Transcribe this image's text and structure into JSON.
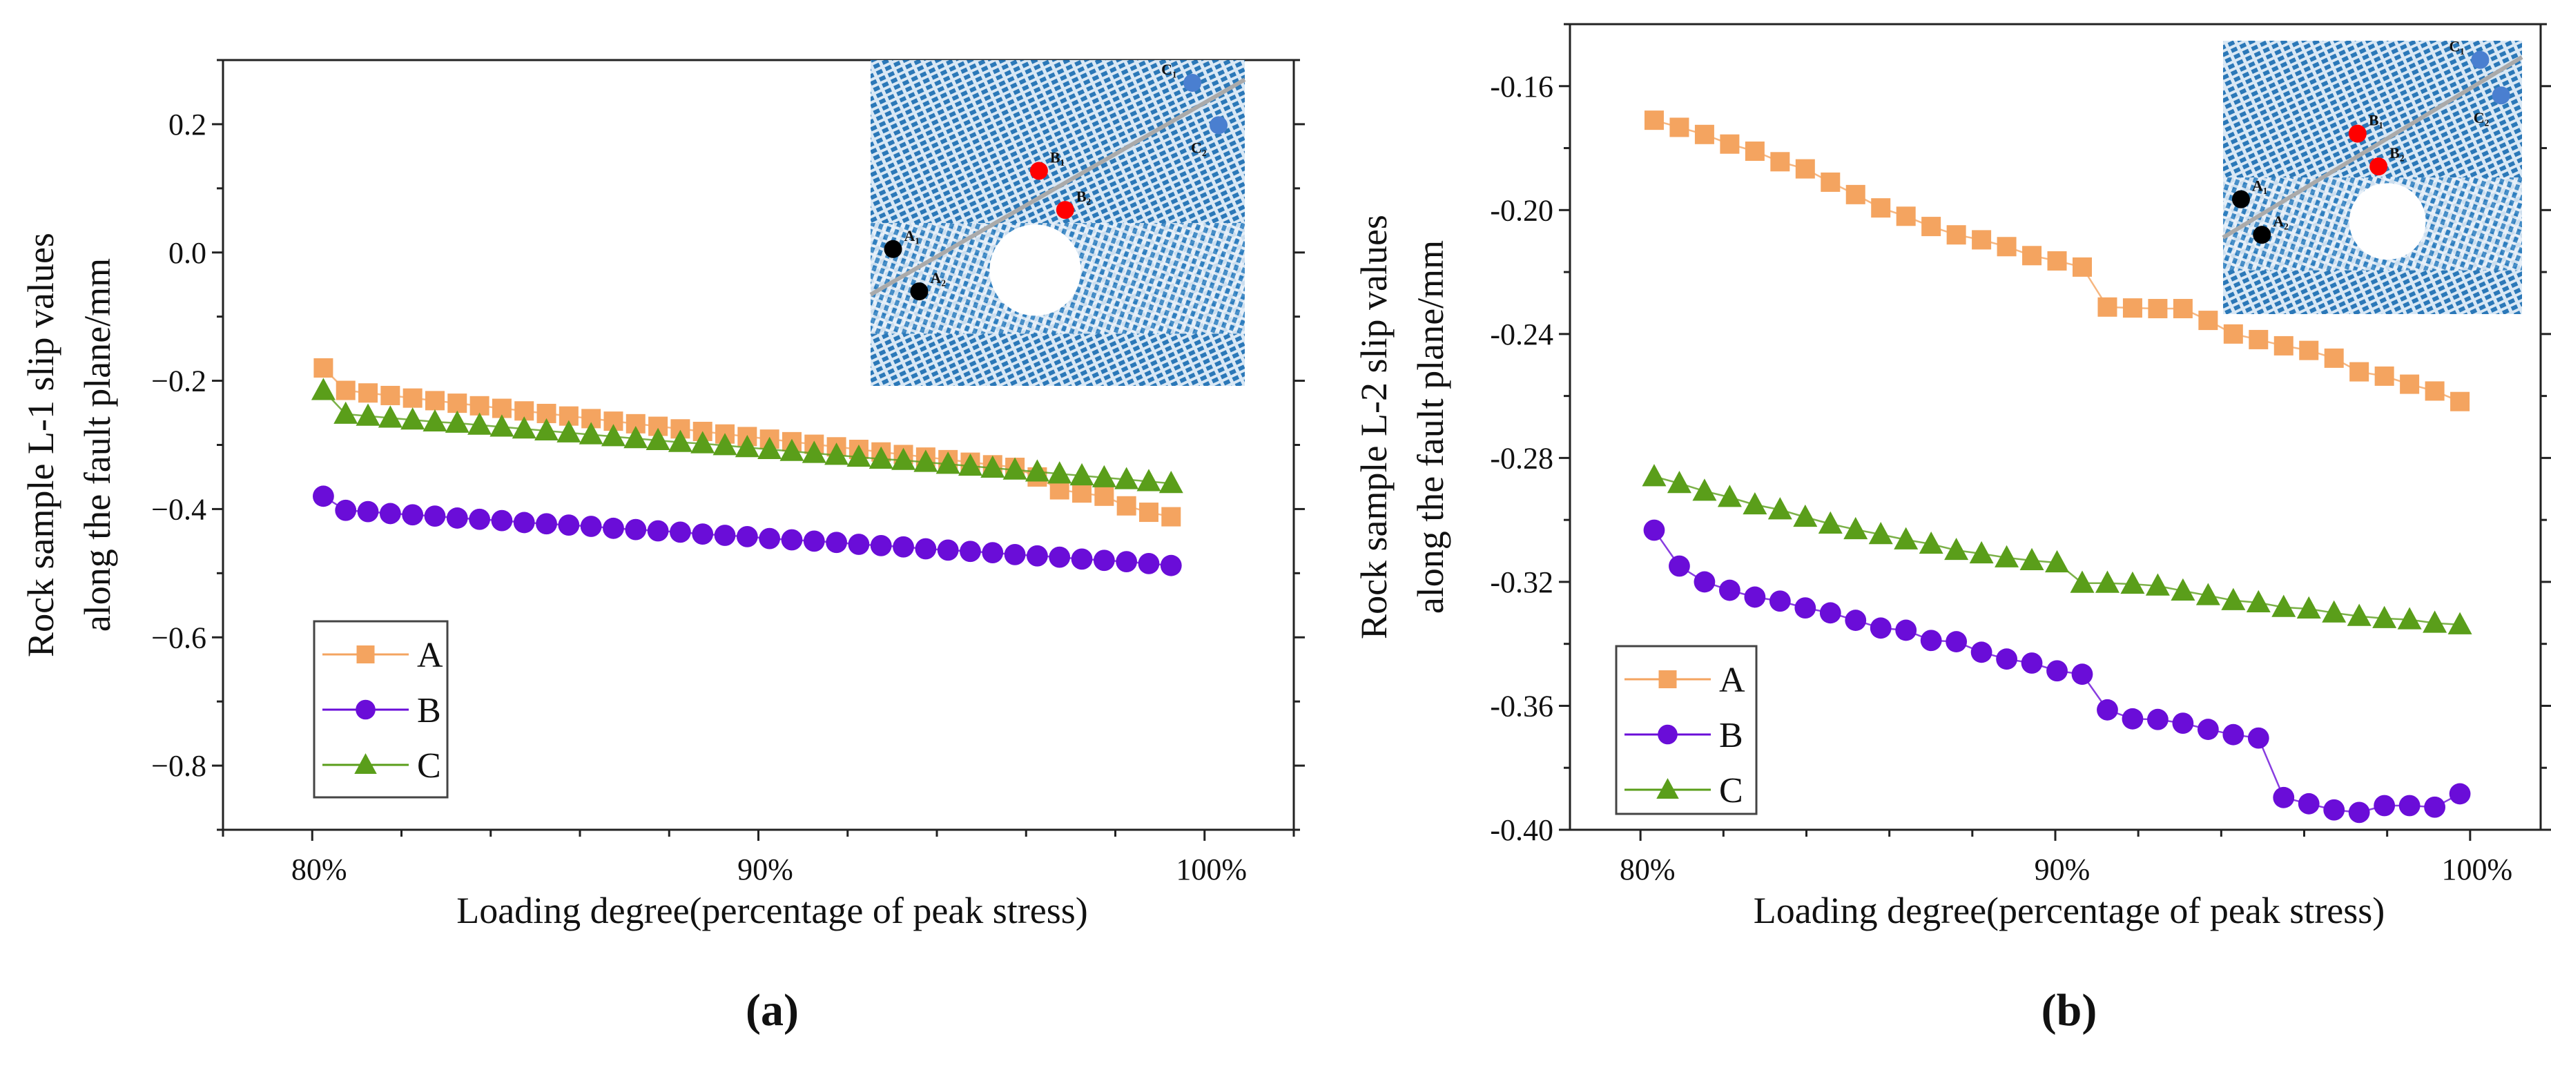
{
  "chart_data": [
    {
      "type": "line",
      "panel_label": "(a)",
      "xlabel": "Loading degree(percentage of peak stress)",
      "ylabel": [
        "Rock sample L-1 slip values",
        "along the fault plane/mm"
      ],
      "xlim": [
        78,
        102
      ],
      "ylim": [
        -0.9,
        0.3
      ],
      "xticks": [
        80,
        90,
        100
      ],
      "xtick_labels": [
        "80%",
        "90%",
        "100%"
      ],
      "yticks": [
        0.2,
        0.0,
        -0.2,
        -0.4,
        -0.6,
        -0.8
      ],
      "ytick_labels": [
        "0.2",
        "0.0",
        "−0.2",
        "−0.4",
        "−0.6",
        "−0.8"
      ],
      "legend_position": "lower-left",
      "x_start": 80.25,
      "x_step": 0.5,
      "series": [
        {
          "name": "A",
          "color": "#f4a460",
          "marker": "square",
          "values": [
            -0.18,
            -0.215,
            -0.219,
            -0.223,
            -0.227,
            -0.231,
            -0.235,
            -0.239,
            -0.243,
            -0.247,
            -0.251,
            -0.255,
            -0.259,
            -0.263,
            -0.267,
            -0.271,
            -0.275,
            -0.279,
            -0.283,
            -0.287,
            -0.291,
            -0.295,
            -0.299,
            -0.303,
            -0.307,
            -0.311,
            -0.315,
            -0.319,
            -0.323,
            -0.327,
            -0.331,
            -0.335,
            -0.35,
            -0.37,
            -0.375,
            -0.38,
            -0.395,
            -0.405,
            -0.412
          ]
        },
        {
          "name": "B",
          "color": "#6a0dd8",
          "marker": "circle",
          "values": [
            -0.38,
            -0.402,
            -0.404,
            -0.407,
            -0.409,
            -0.411,
            -0.414,
            -0.416,
            -0.418,
            -0.421,
            -0.423,
            -0.425,
            -0.427,
            -0.43,
            -0.432,
            -0.434,
            -0.436,
            -0.439,
            -0.441,
            -0.443,
            -0.446,
            -0.448,
            -0.45,
            -0.452,
            -0.455,
            -0.457,
            -0.459,
            -0.462,
            -0.464,
            -0.466,
            -0.468,
            -0.471,
            -0.473,
            -0.475,
            -0.478,
            -0.48,
            -0.482,
            -0.485,
            -0.488
          ]
        },
        {
          "name": "C",
          "color": "#5a9e1a",
          "marker": "triangle",
          "values": [
            -0.215,
            -0.252,
            -0.255,
            -0.258,
            -0.261,
            -0.264,
            -0.266,
            -0.269,
            -0.272,
            -0.275,
            -0.278,
            -0.281,
            -0.284,
            -0.287,
            -0.29,
            -0.293,
            -0.296,
            -0.298,
            -0.301,
            -0.304,
            -0.307,
            -0.31,
            -0.313,
            -0.316,
            -0.319,
            -0.322,
            -0.324,
            -0.327,
            -0.33,
            -0.333,
            -0.336,
            -0.339,
            -0.342,
            -0.345,
            -0.348,
            -0.351,
            -0.354,
            -0.357,
            -0.36
          ]
        }
      ],
      "inset_labels": [
        "A₁",
        "A₂",
        "B₁",
        "B₂",
        "C₁",
        "C₂"
      ]
    },
    {
      "type": "line",
      "panel_label": "(b)",
      "xlabel": "Loading degree(percentage of peak stress)",
      "ylabel": [
        "Rock sample L-2 slip values",
        "along the fault plane/mm"
      ],
      "xlim": [
        78.3,
        101.7
      ],
      "ylim": [
        -0.4,
        -0.14
      ],
      "xticks": [
        80,
        90,
        100
      ],
      "xtick_labels": [
        "80%",
        "90%",
        "100%"
      ],
      "yticks": [
        -0.16,
        -0.2,
        -0.24,
        -0.28,
        -0.32,
        -0.36,
        -0.4
      ],
      "ytick_labels": [
        "-0.16",
        "-0.20",
        "-0.24",
        "-0.28",
        "-0.32",
        "-0.36",
        "-0.40"
      ],
      "legend_position": "lower-left",
      "x_start": 80.33,
      "x_step": 0.607,
      "series": [
        {
          "name": "A",
          "color": "#f4a460",
          "marker": "square",
          "values": [
            -0.171,
            -0.1733,
            -0.1756,
            -0.1787,
            -0.181,
            -0.1844,
            -0.1867,
            -0.191,
            -0.195,
            -0.1993,
            -0.202,
            -0.2053,
            -0.208,
            -0.2096,
            -0.2118,
            -0.2147,
            -0.2164,
            -0.2184,
            -0.2313,
            -0.2316,
            -0.2318,
            -0.2318,
            -0.2356,
            -0.24,
            -0.2418,
            -0.2438,
            -0.2453,
            -0.2478,
            -0.2522,
            -0.2536,
            -0.2562,
            -0.2584,
            -0.2618
          ]
        },
        {
          "name": "B",
          "color": "#6a0dd8",
          "marker": "circle",
          "values": [
            -0.3033,
            -0.3149,
            -0.32,
            -0.3227,
            -0.3249,
            -0.3262,
            -0.3284,
            -0.33,
            -0.3324,
            -0.3349,
            -0.3356,
            -0.3389,
            -0.3393,
            -0.3427,
            -0.3449,
            -0.3462,
            -0.3487,
            -0.3498,
            -0.3613,
            -0.3642,
            -0.3644,
            -0.3656,
            -0.3676,
            -0.3693,
            -0.3704,
            -0.3896,
            -0.3916,
            -0.3936,
            -0.3944,
            -0.3922,
            -0.3922,
            -0.3927,
            -0.3884
          ]
        },
        {
          "name": "C",
          "color": "#5a9e1a",
          "marker": "triangle",
          "values": [
            -0.286,
            -0.2882,
            -0.2907,
            -0.2927,
            -0.2951,
            -0.2967,
            -0.2991,
            -0.3013,
            -0.3031,
            -0.3047,
            -0.3064,
            -0.3078,
            -0.3098,
            -0.3109,
            -0.3122,
            -0.3131,
            -0.3138,
            -0.3204,
            -0.3204,
            -0.3207,
            -0.3213,
            -0.3229,
            -0.3244,
            -0.326,
            -0.3267,
            -0.3282,
            -0.3287,
            -0.33,
            -0.3311,
            -0.3318,
            -0.3322,
            -0.3333,
            -0.3338
          ]
        }
      ],
      "inset_labels": [
        "A₁",
        "A₂",
        "B₁",
        "B₂",
        "C₁",
        "C₂"
      ]
    }
  ]
}
